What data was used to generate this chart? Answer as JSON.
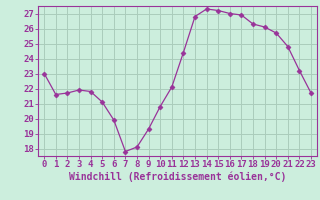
{
  "x": [
    0,
    1,
    2,
    3,
    4,
    5,
    6,
    7,
    8,
    9,
    10,
    11,
    12,
    13,
    14,
    15,
    16,
    17,
    18,
    19,
    20,
    21,
    22,
    23
  ],
  "y": [
    23.0,
    21.6,
    21.7,
    21.9,
    21.8,
    21.1,
    19.9,
    17.8,
    18.1,
    19.3,
    20.8,
    22.1,
    24.4,
    26.8,
    27.3,
    27.2,
    27.0,
    26.9,
    26.3,
    26.1,
    25.7,
    24.8,
    23.2,
    21.7
  ],
  "line_color": "#993399",
  "marker": "D",
  "marker_size": 2.5,
  "bg_color": "#cceedd",
  "grid_color": "#aaccbb",
  "spine_color": "#993399",
  "xlabel": "Windchill (Refroidissement éolien,°C)",
  "xlabel_color": "#993399",
  "tick_color": "#993399",
  "ylim": [
    17.5,
    27.5
  ],
  "yticks": [
    18,
    19,
    20,
    21,
    22,
    23,
    24,
    25,
    26,
    27
  ],
  "font_size": 6.5
}
